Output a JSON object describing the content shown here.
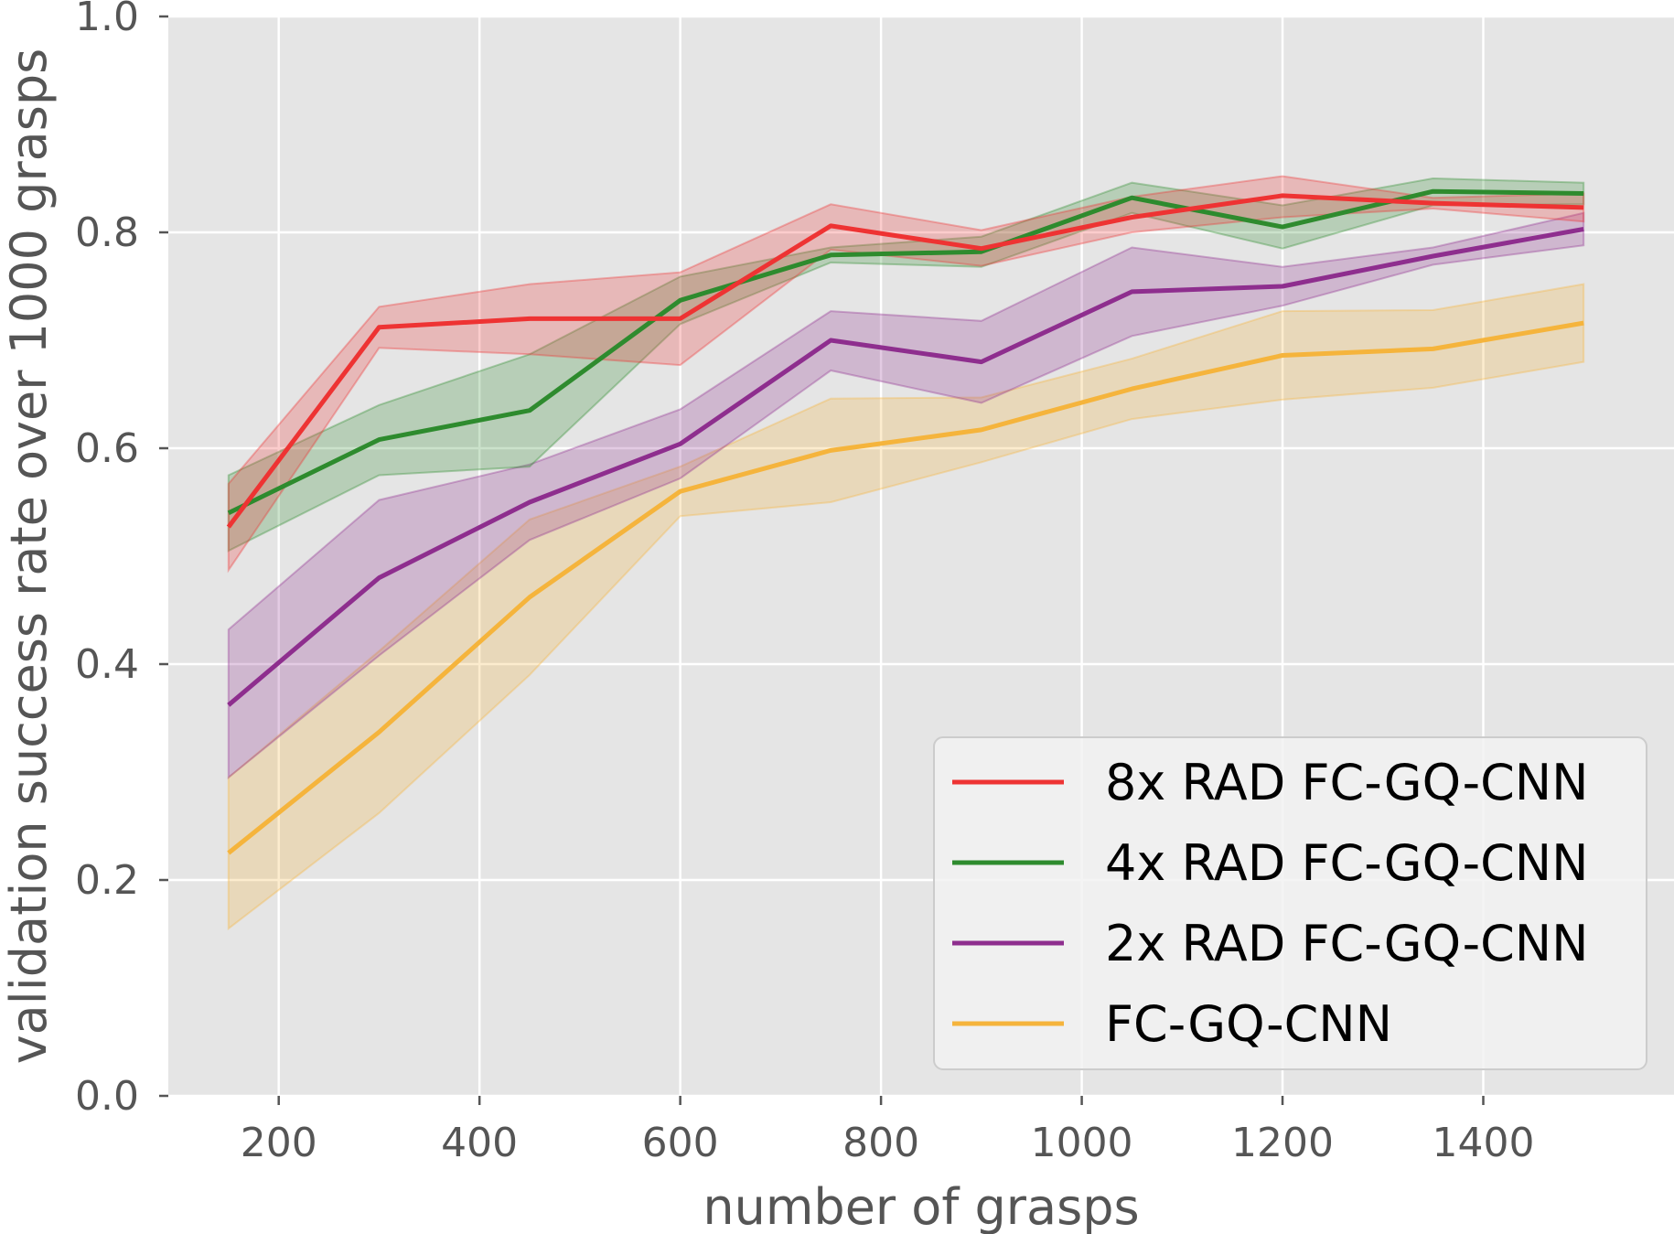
{
  "chart_data": {
    "type": "line",
    "title": "",
    "xlabel": "number of grasps",
    "ylabel": "validation success rate over 1000 grasps",
    "xlim": [
      90,
      1590
    ],
    "ylim": [
      0.0,
      1.0
    ],
    "xticks": [
      200,
      400,
      600,
      800,
      1000,
      1200,
      1400
    ],
    "yticks": [
      0.0,
      0.2,
      0.4,
      0.6,
      0.8,
      1.0
    ],
    "xtick_labels": [
      "200",
      "400",
      "600",
      "800",
      "1000",
      "1200",
      "1400"
    ],
    "ytick_labels": [
      "0.0",
      "0.2",
      "0.4",
      "0.6",
      "0.8",
      "1.0"
    ],
    "grid": true,
    "legend_position": "bottom-right",
    "x": [
      150,
      300,
      450,
      600,
      750,
      900,
      1050,
      1200,
      1350,
      1500
    ],
    "series": [
      {
        "name": "8x RAD FC-GQ-CNN",
        "color": "#ee3333",
        "values": [
          0.527,
          0.712,
          0.72,
          0.72,
          0.806,
          0.785,
          0.814,
          0.834,
          0.827,
          0.823
        ],
        "lower": [
          0.487,
          0.693,
          0.687,
          0.677,
          0.784,
          0.769,
          0.8,
          0.814,
          0.822,
          0.81
        ],
        "upper": [
          0.567,
          0.731,
          0.752,
          0.763,
          0.826,
          0.802,
          0.833,
          0.852,
          0.832,
          0.836
        ]
      },
      {
        "name": "4x RAD FC-GQ-CNN",
        "color": "#2e8b2e",
        "values": [
          0.54,
          0.608,
          0.635,
          0.737,
          0.779,
          0.782,
          0.832,
          0.805,
          0.838,
          0.836
        ],
        "lower": [
          0.505,
          0.575,
          0.583,
          0.715,
          0.772,
          0.768,
          0.818,
          0.785,
          0.825,
          0.826
        ],
        "upper": [
          0.575,
          0.64,
          0.687,
          0.759,
          0.786,
          0.796,
          0.846,
          0.825,
          0.85,
          0.846
        ]
      },
      {
        "name": "2x RAD FC-GQ-CNN",
        "color": "#8e2e8e",
        "values": [
          0.362,
          0.48,
          0.55,
          0.604,
          0.7,
          0.68,
          0.745,
          0.75,
          0.778,
          0.803
        ],
        "lower": [
          0.295,
          0.408,
          0.515,
          0.572,
          0.672,
          0.642,
          0.704,
          0.732,
          0.77,
          0.788
        ],
        "upper": [
          0.432,
          0.552,
          0.585,
          0.636,
          0.727,
          0.718,
          0.786,
          0.768,
          0.786,
          0.818
        ]
      },
      {
        "name": "FC-GQ-CNN",
        "color": "#f5b43c",
        "values": [
          0.225,
          0.337,
          0.462,
          0.56,
          0.598,
          0.617,
          0.655,
          0.686,
          0.692,
          0.716
        ],
        "lower": [
          0.155,
          0.262,
          0.39,
          0.537,
          0.55,
          0.587,
          0.627,
          0.645,
          0.656,
          0.68
        ],
        "upper": [
          0.295,
          0.412,
          0.534,
          0.583,
          0.646,
          0.647,
          0.683,
          0.727,
          0.728,
          0.752
        ]
      }
    ]
  },
  "style": {
    "plot_background": "#e5e5e5",
    "grid_color": "#ffffff",
    "tick_color": "#555555",
    "legend_background": "#f2f2f2",
    "legend_border": "#cccccc"
  }
}
